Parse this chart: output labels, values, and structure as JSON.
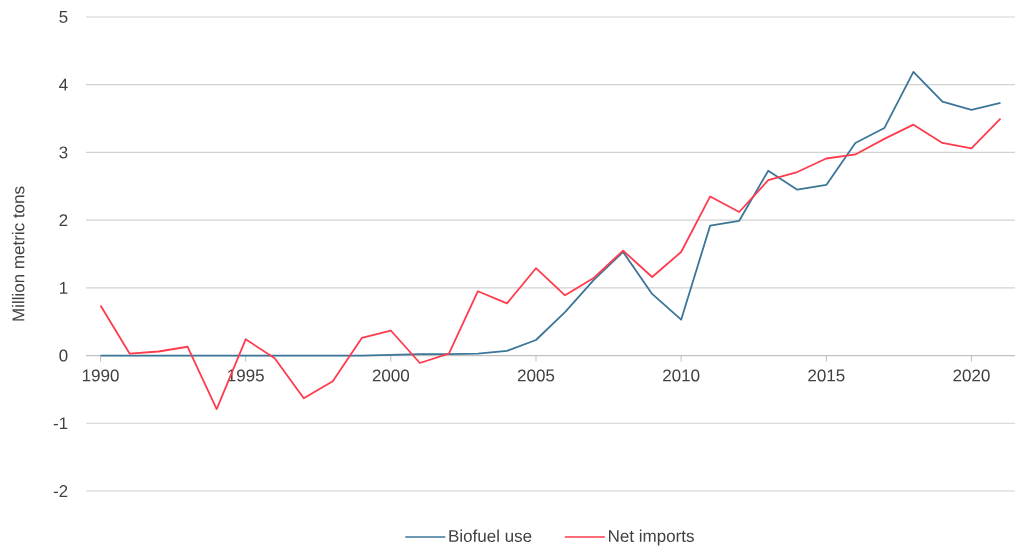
{
  "chart_data": {
    "type": "line",
    "ylabel": "Million metric tons",
    "x": [
      1990,
      1991,
      1992,
      1993,
      1994,
      1995,
      1996,
      1997,
      1998,
      1999,
      2000,
      2001,
      2002,
      2003,
      2004,
      2005,
      2006,
      2007,
      2008,
      2009,
      2010,
      2011,
      2012,
      2013,
      2014,
      2015,
      2016,
      2017,
      2018,
      2019,
      2020,
      2021
    ],
    "series": [
      {
        "name": "Biofuel use",
        "color": "#3b7698",
        "values": [
          0,
          0,
          0,
          0,
          0,
          0,
          0,
          0,
          0,
          0,
          0.01,
          0.02,
          0.02,
          0.03,
          0.07,
          0.23,
          0.64,
          1.12,
          1.53,
          0.91,
          0.53,
          1.92,
          1.99,
          2.73,
          2.45,
          2.52,
          3.14,
          3.36,
          4.19,
          3.75,
          3.63,
          3.73
        ]
      },
      {
        "name": "Net imports",
        "color": "#ff3b4e",
        "values": [
          0.74,
          0.03,
          0.06,
          0.13,
          -0.79,
          0.24,
          -0.04,
          -0.63,
          -0.38,
          0.26,
          0.37,
          -0.11,
          0.03,
          0.95,
          0.77,
          1.29,
          0.89,
          1.15,
          1.55,
          1.16,
          1.53,
          2.35,
          2.12,
          2.59,
          2.71,
          2.91,
          2.97,
          3.2,
          3.41,
          3.14,
          3.06,
          3.5
        ]
      }
    ],
    "xlim": [
      1989.5,
      2021.5
    ],
    "xticks": [
      1990,
      1995,
      2000,
      2005,
      2010,
      2015,
      2020
    ],
    "ylim": [
      -2,
      5
    ],
    "yticks": [
      -2,
      -1,
      0,
      1,
      2,
      3,
      4,
      5
    ],
    "grid": "y",
    "legend": "bottom",
    "line_style": "solid"
  }
}
